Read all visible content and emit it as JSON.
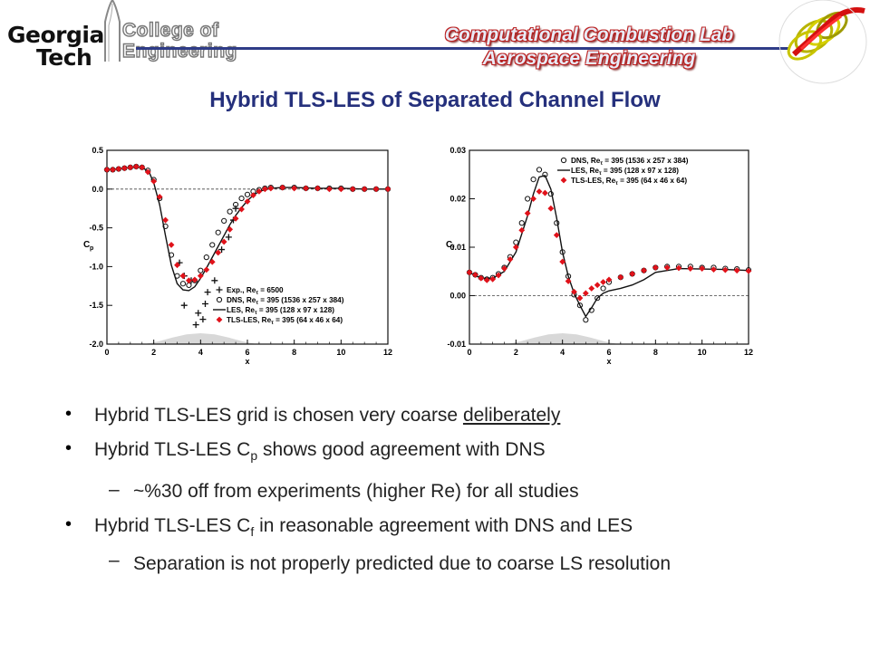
{
  "header": {
    "logo_georgia": "Georgia",
    "logo_tech": "Tech",
    "logo_college": "College of",
    "logo_engineering": "Engineering",
    "lab_line1": "Computational Combustion Lab",
    "lab_line2": "Aerospace Engineering"
  },
  "colors": {
    "title": "#25307c",
    "rule": "#2f3c87",
    "accent_red": "#c0141c"
  },
  "slide_title": "Hybrid TLS-LES of Separated Channel Flow",
  "bullets": {
    "b1_text": "Hybrid TLS-LES grid is chosen very coarse ",
    "b1_underlined": "deliberately",
    "b2_before": "Hybrid TLS-LES C",
    "b2_sub": "p",
    "b2_after": " shows good agreement with DNS",
    "s1_dash": "–",
    "s1_text": "~%30 off from experiments (higher Re) for all studies",
    "b3_before": "Hybrid TLS-LES C",
    "b3_sub": "f",
    "b3_after": " in reasonable agreement with DNS and LES",
    "s2_dash": "–",
    "s2_text": "Separation is not properly predicted due to coarse LS resolution"
  },
  "chart_data": [
    {
      "type": "line",
      "ylabel": "C",
      "ylabel_sub": "p",
      "xlabel": "x",
      "xlim": [
        0,
        12
      ],
      "ylim": [
        -2.0,
        0.5
      ],
      "xticks": [
        0,
        2,
        4,
        6,
        8,
        10,
        12
      ],
      "yticks": [
        0.5,
        0.0,
        -0.5,
        -1.0,
        -1.5,
        -2.0
      ],
      "ytick_labels": [
        "0.5",
        "0.0",
        "-0.5",
        "-1.0",
        "-1.5",
        "-2.0"
      ],
      "legend": [
        {
          "name": "Exp., Re",
          "sub": "τ",
          "tail": " = 6500"
        },
        {
          "name": "DNS, Re",
          "sub": "τ",
          "tail": " = 395 (1536 x 257 x 384)"
        },
        {
          "name": "LES,  Re",
          "sub": "τ",
          "tail": " = 395 (128 x 97 x 128)"
        },
        {
          "name": "TLS-LES, Re",
          "sub": "τ",
          "tail": " = 395 (64 x 46 x 64)"
        }
      ],
      "legend_position": "bottom-right",
      "series": [
        {
          "name": "Exp.",
          "marker": "plus",
          "x": [
            3.1,
            3.3,
            3.6,
            3.3,
            3.9,
            4.1,
            3.8,
            4.3,
            4.6,
            4.9,
            5.2,
            5.4,
            5.5,
            4.2
          ],
          "y": [
            -0.95,
            -1.12,
            -1.18,
            -1.5,
            -1.6,
            -1.68,
            -1.75,
            -1.33,
            -1.18,
            -0.78,
            -0.62,
            -0.4,
            -0.25,
            -1.48
          ]
        },
        {
          "name": "DNS",
          "marker": "circle",
          "x": [
            0,
            0.25,
            0.5,
            0.75,
            1,
            1.25,
            1.5,
            1.75,
            2,
            2.25,
            2.5,
            2.75,
            3,
            3.25,
            3.5,
            3.75,
            4,
            4.25,
            4.5,
            4.75,
            5,
            5.25,
            5.5,
            5.75,
            6,
            6.25,
            6.5,
            6.75,
            7,
            7.5,
            8,
            8.5,
            9,
            9.5,
            10,
            10.5,
            11,
            11.5,
            12
          ],
          "y": [
            0.25,
            0.25,
            0.26,
            0.27,
            0.28,
            0.29,
            0.28,
            0.24,
            0.12,
            -0.12,
            -0.48,
            -0.85,
            -1.12,
            -1.22,
            -1.24,
            -1.18,
            -1.05,
            -0.88,
            -0.72,
            -0.56,
            -0.41,
            -0.29,
            -0.2,
            -0.12,
            -0.07,
            -0.03,
            -0.01,
            0.01,
            0.02,
            0.02,
            0.02,
            0.01,
            0.01,
            0.01,
            0.01,
            0.0,
            0.0,
            0.0,
            0.0
          ]
        },
        {
          "name": "LES",
          "marker": "line",
          "x": [
            0,
            0.5,
            1,
            1.5,
            1.8,
            2,
            2.25,
            2.5,
            2.75,
            3,
            3.25,
            3.5,
            3.75,
            4,
            4.25,
            4.5,
            4.75,
            5,
            5.25,
            5.5,
            5.75,
            6,
            6.25,
            6.5,
            7,
            7.5,
            8,
            9,
            10,
            11,
            12
          ],
          "y": [
            0.25,
            0.26,
            0.28,
            0.28,
            0.22,
            0.08,
            -0.2,
            -0.6,
            -0.98,
            -1.22,
            -1.3,
            -1.31,
            -1.26,
            -1.15,
            -1.02,
            -0.88,
            -0.74,
            -0.6,
            -0.46,
            -0.34,
            -0.24,
            -0.15,
            -0.08,
            -0.03,
            0.01,
            0.02,
            0.02,
            0.01,
            0.01,
            0.0,
            0.0
          ]
        },
        {
          "name": "TLS-LES",
          "marker": "diamond",
          "x": [
            0,
            0.25,
            0.5,
            0.75,
            1,
            1.25,
            1.5,
            1.75,
            2,
            2.25,
            2.5,
            2.75,
            3,
            3.25,
            3.5,
            3.75,
            4,
            4.25,
            4.5,
            4.75,
            5,
            5.25,
            5.5,
            5.75,
            6,
            6.25,
            6.5,
            6.75,
            7,
            7.5,
            8,
            8.5,
            9,
            9.5,
            10,
            10.5,
            11,
            11.5,
            12
          ],
          "y": [
            0.25,
            0.25,
            0.26,
            0.27,
            0.28,
            0.29,
            0.28,
            0.22,
            0.1,
            -0.1,
            -0.4,
            -0.72,
            -0.98,
            -1.12,
            -1.18,
            -1.17,
            -1.12,
            -1.04,
            -0.94,
            -0.82,
            -0.68,
            -0.52,
            -0.38,
            -0.26,
            -0.16,
            -0.08,
            -0.03,
            0.0,
            0.01,
            0.02,
            0.01,
            0.01,
            0.01,
            0.0,
            0.0,
            0.0,
            0.0,
            0.0,
            0.0
          ]
        }
      ]
    },
    {
      "type": "line",
      "ylabel": "C",
      "ylabel_sub": "f",
      "xlabel": "x",
      "xlim": [
        0,
        12
      ],
      "ylim": [
        -0.01,
        0.03
      ],
      "xticks": [
        0,
        2,
        4,
        6,
        8,
        10,
        12
      ],
      "yticks": [
        0.03,
        0.02,
        0.01,
        0.0,
        -0.01
      ],
      "ytick_labels": [
        "0.03",
        "0.02",
        "0.01",
        "0.00",
        "-0.01"
      ],
      "legend": [
        {
          "name": "DNS, Re",
          "sub": "τ",
          "tail": " = 395 (1536 x 257 x 384)"
        },
        {
          "name": "LES,  Re",
          "sub": "τ",
          "tail": " = 395 (128 x 97 x 128)"
        },
        {
          "name": "TLS-LES, Re",
          "sub": "τ",
          "tail": " = 395 (64 x 46 x 64)"
        }
      ],
      "legend_position": "top-right",
      "series": [
        {
          "name": "DNS",
          "marker": "circle",
          "x": [
            0,
            0.25,
            0.5,
            0.75,
            1,
            1.25,
            1.5,
            1.75,
            2,
            2.25,
            2.5,
            2.75,
            3,
            3.25,
            3.5,
            3.75,
            4,
            4.25,
            4.5,
            4.75,
            5,
            5.25,
            5.5,
            5.75,
            6,
            6.5,
            7,
            7.5,
            8,
            8.5,
            9,
            9.5,
            10,
            10.5,
            11,
            11.5,
            12
          ],
          "y": [
            0.0048,
            0.0043,
            0.0037,
            0.0034,
            0.0037,
            0.0045,
            0.0058,
            0.008,
            0.011,
            0.015,
            0.02,
            0.024,
            0.026,
            0.025,
            0.021,
            0.015,
            0.009,
            0.004,
            0.0002,
            -0.002,
            -0.005,
            -0.003,
            -0.0005,
            0.0015,
            0.0028,
            0.0038,
            0.0045,
            0.0052,
            0.0058,
            0.006,
            0.006,
            0.006,
            0.0058,
            0.0058,
            0.0056,
            0.0055,
            0.0053
          ]
        },
        {
          "name": "LES",
          "marker": "line",
          "x": [
            0,
            0.5,
            1,
            1.5,
            2,
            2.5,
            2.75,
            3,
            3.25,
            3.5,
            3.75,
            4,
            4.25,
            4.5,
            4.75,
            5,
            5.25,
            5.5,
            5.75,
            6,
            6.5,
            7,
            7.5,
            8,
            9,
            10,
            11,
            12
          ],
          "y": [
            0.0048,
            0.0036,
            0.0036,
            0.005,
            0.009,
            0.0165,
            0.021,
            0.0245,
            0.0248,
            0.022,
            0.016,
            0.009,
            0.004,
            0.0005,
            -0.002,
            -0.0043,
            -0.0025,
            -0.0005,
            0.0005,
            0.001,
            0.0015,
            0.0022,
            0.0033,
            0.0048,
            0.0056,
            0.0055,
            0.0054,
            0.0052
          ]
        },
        {
          "name": "TLS-LES",
          "marker": "diamond",
          "x": [
            0,
            0.25,
            0.5,
            0.75,
            1,
            1.25,
            1.5,
            1.75,
            2,
            2.25,
            2.5,
            2.75,
            3,
            3.25,
            3.5,
            3.75,
            4,
            4.25,
            4.5,
            4.75,
            5,
            5.25,
            5.5,
            5.75,
            6,
            6.5,
            7,
            7.5,
            8,
            8.5,
            9,
            9.5,
            10,
            10.5,
            11,
            11.5,
            12
          ],
          "y": [
            0.0048,
            0.0043,
            0.0036,
            0.0032,
            0.0034,
            0.0042,
            0.0056,
            0.0075,
            0.01,
            0.0135,
            0.017,
            0.02,
            0.0215,
            0.0212,
            0.018,
            0.0125,
            0.007,
            0.003,
            0.0008,
            -0.0005,
            0.0005,
            0.0015,
            0.0022,
            0.0028,
            0.0033,
            0.0038,
            0.0045,
            0.0052,
            0.0058,
            0.0058,
            0.0057,
            0.0056,
            0.0056,
            0.0054,
            0.0053,
            0.0052,
            0.0051
          ]
        }
      ]
    }
  ]
}
